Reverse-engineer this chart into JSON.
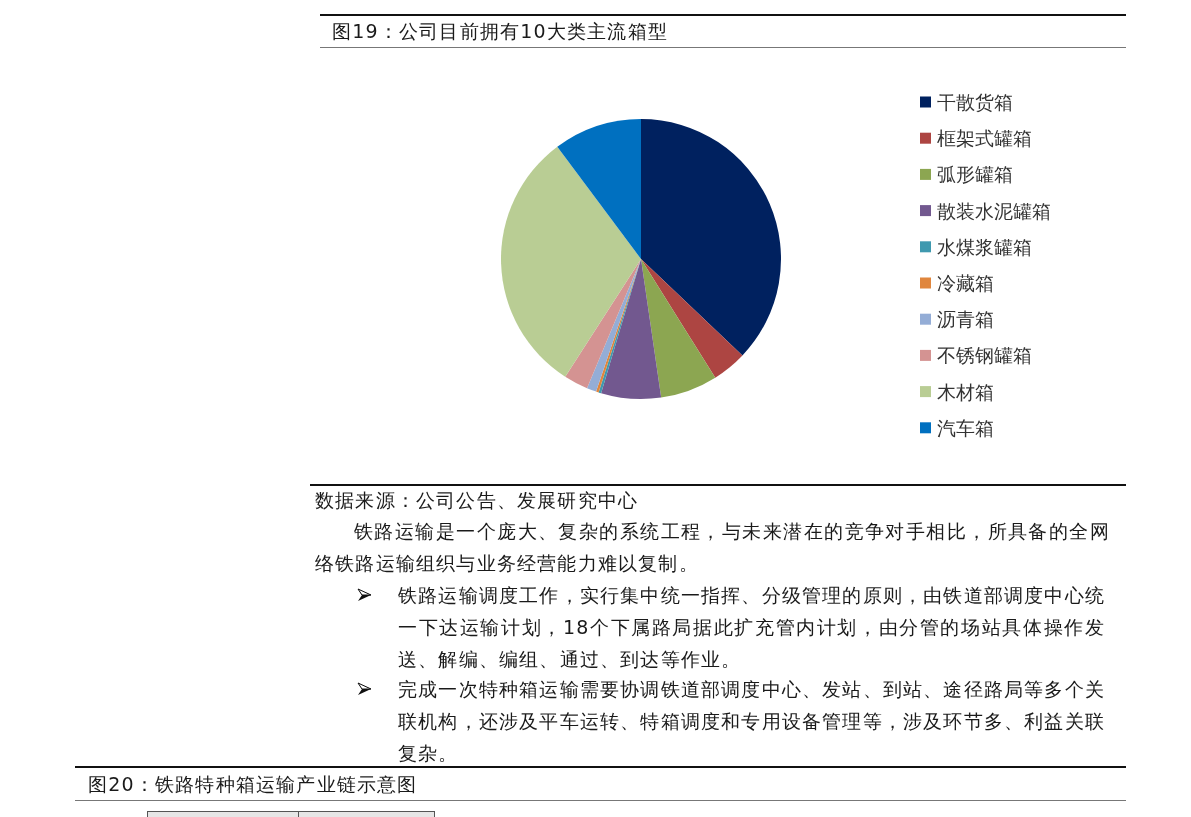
{
  "chart_data": {
    "type": "pie",
    "title": "图19：公司目前拥有10大类主流箱型",
    "categories": [
      "干散货箱",
      "框架式罐箱",
      "弧形罐箱",
      "散装水泥罐箱",
      "水煤浆罐箱",
      "冷藏箱",
      "沥青箱",
      "不锈钢罐箱",
      "木材箱",
      "汽车箱"
    ],
    "values": [
      37.1,
      4.0,
      6.6,
      6.9,
      0.3,
      0.3,
      1.1,
      2.8,
      30.7,
      10.2
    ],
    "colors": [
      "#00215f",
      "#ad4542",
      "#8ca651",
      "#72588f",
      "#3f99af",
      "#e0863d",
      "#94add6",
      "#d49392",
      "#b9cd94",
      "#0070c0"
    ],
    "legend": "right",
    "annotations": [
      "数据来源：公司公告、发展研究中心",
      "铁路运输是一个庞大、复杂的系统工程，与未来潜在的竞争对手相比，所具备的全网络铁路运输组织与业务经营能力难以复制。",
      "铁路运输调度工作，实行集中统一指挥、分级管理的原则，由铁道部调度中心统一下达运输计划，18个下属路局据此扩充管内计划，由分管的场站具体操作发送、解编、编组、通过、到达等作业。",
      "完成一次特种箱运输需要协调铁道部调度中心、发站、到站、途径路局等多个关联机构，还涉及平车运转、特箱调度和专用设备管理等，涉及环节多、利益关联复杂。",
      "图20：铁路特种箱运输产业链示意图"
    ]
  }
}
